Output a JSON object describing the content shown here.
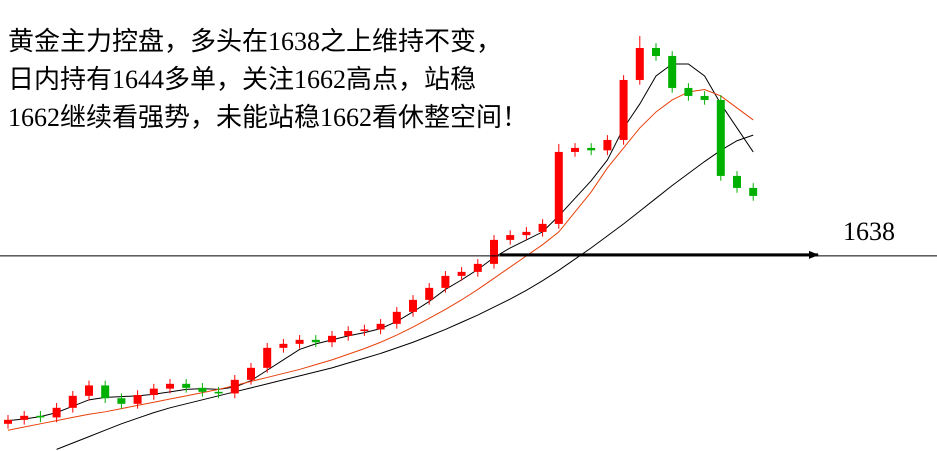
{
  "chart_data": {
    "type": "candlestick",
    "annotation": [
      "黄金主力控盘，多头在1638之上维持不变，",
      "日内持有1644多单，关注1662高点，站稳",
      "1662继续看强势，未能站稳1662看休整空间！"
    ],
    "level": 1638,
    "level_color": "#000000",
    "up_color": "#ff0000",
    "down_color": "#00b000",
    "ylim": [
      1613.6,
      1670
    ],
    "open": [
      1617,
      1617.5,
      1618,
      1617.8,
      1619,
      1620.5,
      1621.8,
      1620.2,
      1619.5,
      1620.6,
      1621.4,
      1622,
      1621.5,
      1621,
      1620.8,
      1622.5,
      1624,
      1626.5,
      1627,
      1627.5,
      1627.2,
      1628,
      1628.6,
      1628.8,
      1629.5,
      1631,
      1632.5,
      1634,
      1635.5,
      1636,
      1637,
      1640,
      1640.6,
      1641,
      1642,
      1651,
      1651.5,
      1651.2,
      1652.5,
      1660,
      1664,
      1663,
      1659,
      1658,
      1657.5,
      1648,
      1646.5
    ],
    "high": [
      1618.1,
      1618.6,
      1618.6,
      1619.6,
      1621.1,
      1622.4,
      1622.4,
      1620.8,
      1621.2,
      1622,
      1622.6,
      1622.6,
      1622.1,
      1621.6,
      1623.1,
      1624.6,
      1627.1,
      1627.6,
      1628.1,
      1628.1,
      1628.6,
      1629.2,
      1629.4,
      1630.1,
      1631.6,
      1633.1,
      1634.6,
      1636.1,
      1636.6,
      1637.6,
      1640.6,
      1641.2,
      1641.6,
      1642.6,
      1652,
      1652.1,
      1652.1,
      1653.1,
      1660.6,
      1665.5,
      1664.6,
      1663.6,
      1659.6,
      1658.6,
      1658.1,
      1648.6,
      1647.1
    ],
    "low": [
      1616.4,
      1616.9,
      1617.2,
      1617.2,
      1618.4,
      1619.9,
      1619.6,
      1618.9,
      1618.9,
      1620,
      1620.8,
      1620.9,
      1620.4,
      1620.2,
      1620.2,
      1621.9,
      1623.4,
      1625.9,
      1626.4,
      1626.6,
      1626.6,
      1627.4,
      1628,
      1628.2,
      1628.9,
      1630.4,
      1631.9,
      1633.4,
      1634.9,
      1635.4,
      1636.4,
      1639.4,
      1640,
      1640.4,
      1641.4,
      1650.4,
      1650.6,
      1650.6,
      1651.9,
      1659.4,
      1662.4,
      1658.4,
      1657.4,
      1656.9,
      1647.4,
      1645.9,
      1644.9
    ],
    "close": [
      1617.5,
      1618,
      1617.8,
      1619,
      1620.5,
      1621.8,
      1620.2,
      1619.5,
      1620.6,
      1621.4,
      1622,
      1621.5,
      1621,
      1620.8,
      1622.5,
      1624,
      1626.5,
      1627,
      1627.5,
      1627.2,
      1628,
      1628.6,
      1628.8,
      1629.5,
      1631,
      1632.5,
      1634,
      1635.5,
      1636,
      1637,
      1640,
      1640.6,
      1641,
      1642,
      1651,
      1651.5,
      1651.2,
      1652.5,
      1660,
      1664,
      1663,
      1659,
      1658,
      1657.5,
      1648,
      1646.5,
      1645.5
    ],
    "lines": [
      {
        "color": "#000000",
        "values": [
          1617.4,
          1617.6,
          1617.9,
          1618.4,
          1619.2,
          1620,
          1620.3,
          1620.4,
          1620.5,
          1620.7,
          1621,
          1621.3,
          1621.4,
          1621.3,
          1621.6,
          1622.4,
          1623.7,
          1625,
          1626.3,
          1627,
          1627.5,
          1628,
          1628.4,
          1628.9,
          1629.8,
          1631,
          1632.3,
          1633.8,
          1635,
          1636.3,
          1637.8,
          1639,
          1640,
          1641,
          1643,
          1645.2,
          1647.4,
          1650,
          1654,
          1657,
          1660.5,
          1662,
          1662,
          1660.5,
          1657,
          1654,
          1651
        ]
      },
      {
        "color": "#e8400a",
        "values": [
          1616.2,
          1616.6,
          1617,
          1617.4,
          1617.8,
          1618.2,
          1618.5,
          1618.9,
          1619.3,
          1619.7,
          1620.1,
          1620.5,
          1620.9,
          1621.3,
          1621.8,
          1622.3,
          1622.8,
          1623.3,
          1623.8,
          1624.4,
          1625,
          1625.7,
          1626.4,
          1627.2,
          1628.1,
          1629.1,
          1630.2,
          1631.3,
          1632.5,
          1633.8,
          1635.2,
          1636.6,
          1638,
          1639.4,
          1641,
          1643.5,
          1646,
          1649,
          1651.5,
          1654,
          1656,
          1657.5,
          1658.5,
          1658.8,
          1658,
          1656.5,
          1655
        ]
      },
      {
        "color": "#000000",
        "values": [
          null,
          null,
          null,
          1613.8,
          1614.6,
          1615.4,
          1616.2,
          1617,
          1617.7,
          1618.4,
          1619,
          1619.5,
          1620,
          1620.5,
          1621,
          1621.5,
          1622,
          1622.5,
          1623,
          1623.5,
          1624,
          1624.6,
          1625.2,
          1625.8,
          1626.5,
          1627.2,
          1628,
          1628.8,
          1629.7,
          1630.6,
          1631.6,
          1632.6,
          1633.7,
          1634.9,
          1636.2,
          1637.6,
          1639,
          1640.5,
          1642,
          1643.6,
          1645.2,
          1646.8,
          1648.3,
          1649.8,
          1651.2,
          1652.4,
          1653.1
        ]
      }
    ]
  }
}
